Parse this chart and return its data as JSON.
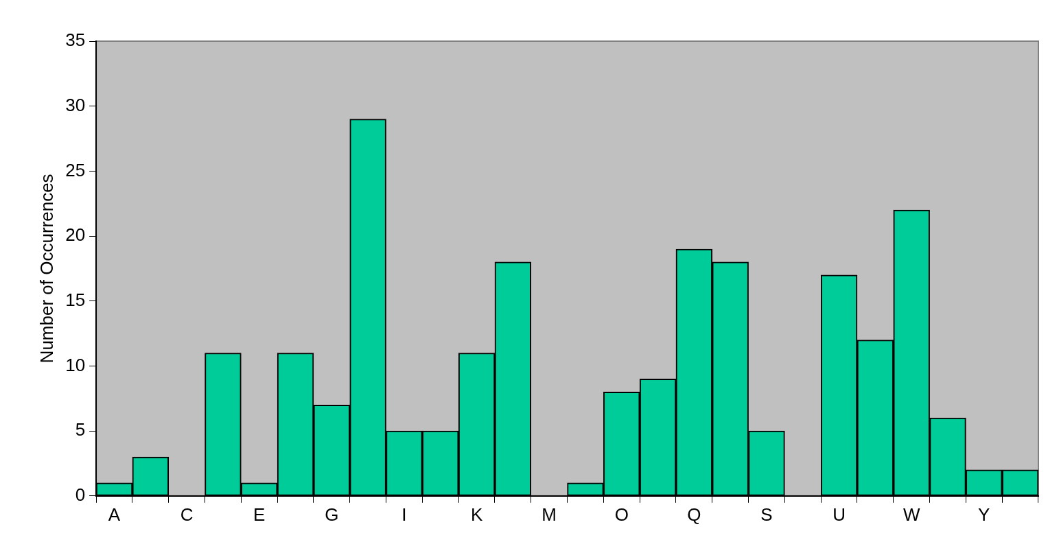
{
  "chart_data": {
    "type": "bar",
    "ylabel": "Number of Occurrences",
    "categories": [
      "A",
      null,
      "C",
      null,
      "E",
      null,
      "G",
      null,
      "I",
      null,
      "K",
      null,
      "M",
      null,
      "O",
      null,
      "Q",
      null,
      "S",
      null,
      "U",
      null,
      "W",
      null,
      "Y",
      null
    ],
    "values": [
      1,
      3,
      0,
      11,
      1,
      11,
      7,
      29,
      5,
      5,
      11,
      18,
      0,
      1,
      8,
      9,
      19,
      18,
      5,
      0,
      17,
      12,
      22,
      6,
      2,
      2
    ],
    "color": "#00cc99",
    "ylim": [
      0,
      35
    ],
    "yticks": [
      0,
      5,
      10,
      15,
      20,
      25,
      30,
      35
    ],
    "grid": false,
    "legend": false
  }
}
